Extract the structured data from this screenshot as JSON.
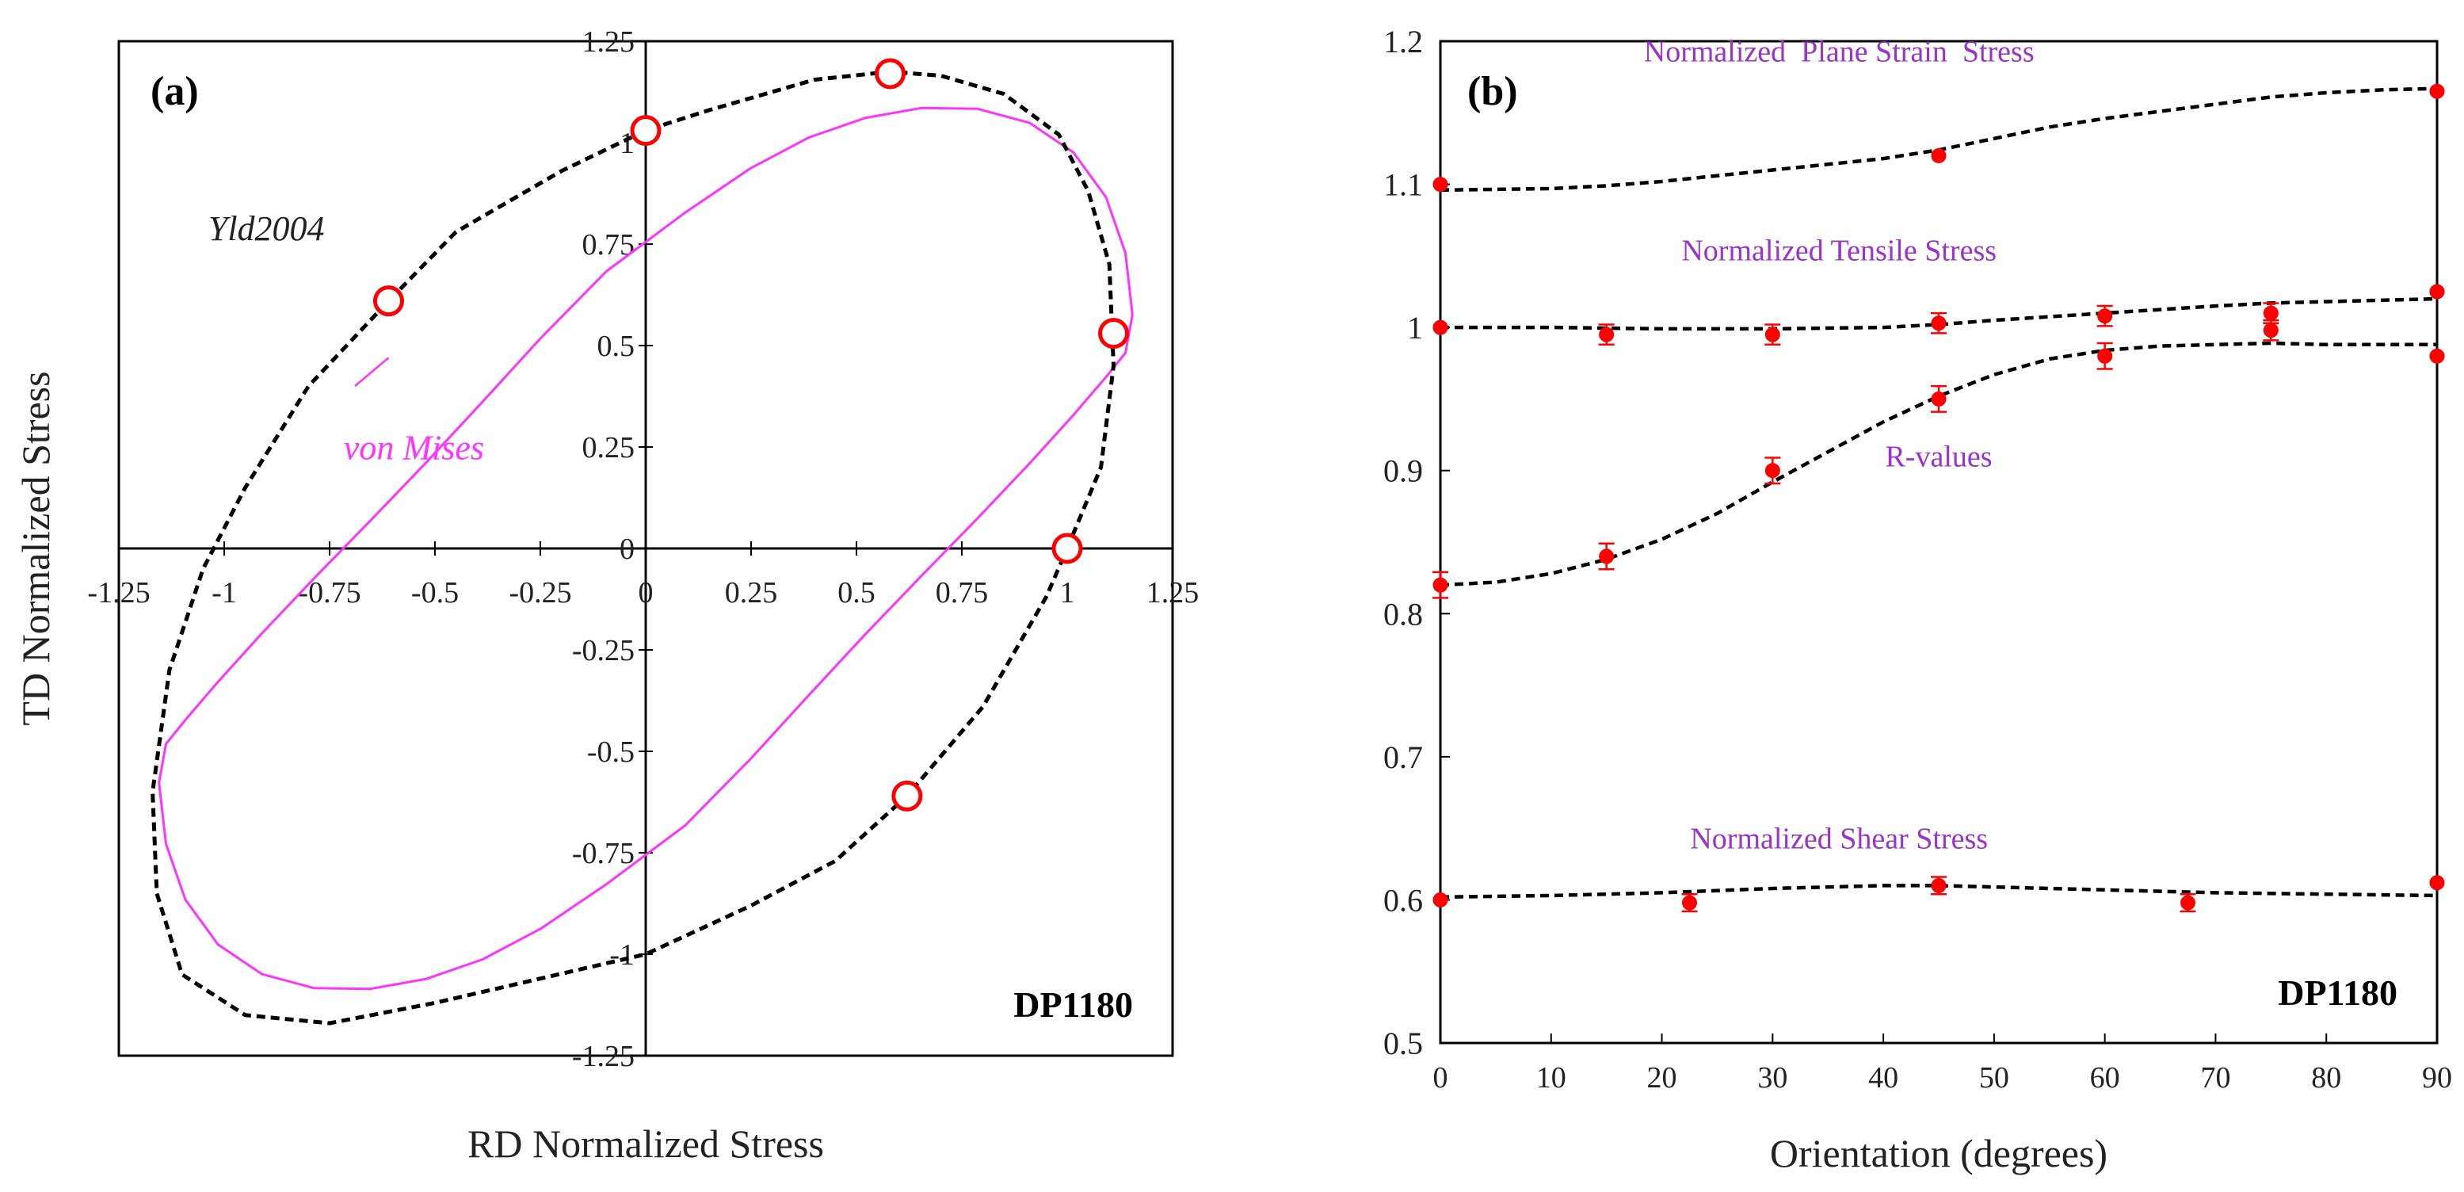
{
  "chart_data": [
    {
      "type": "scatter",
      "panel_label": "(a)",
      "title": "",
      "xlabel": "RD Normalized Stress",
      "ylabel": "TD Normalized Stress",
      "xlim": [
        -1.25,
        1.25
      ],
      "ylim": [
        -1.25,
        1.25
      ],
      "x_ticks": [
        "-1.25",
        "-1",
        "-0.75",
        "-0.5",
        "-0.25",
        "0",
        "0.25",
        "0.5",
        "0.75",
        "1",
        "1.25"
      ],
      "y_ticks": [
        "-1.25",
        "-1",
        "-0.75",
        "-0.5",
        "-0.25",
        "0",
        "0.25",
        "0.5",
        "0.75",
        "1",
        "1.25"
      ],
      "grid": false,
      "annotation": "DP1180",
      "series": [
        {
          "name": "Yld2004",
          "style": "dashed",
          "color": "#000000",
          "x": [
            1.0,
            1.08,
            1.11,
            1.1,
            1.05,
            0.98,
            0.85,
            0.7,
            0.58,
            0.4,
            0.15,
            0.0,
            -0.2,
            -0.45,
            -0.61,
            -0.8,
            -0.95,
            -1.05,
            -1.13,
            -1.17,
            -1.16,
            -1.1,
            -0.95,
            -0.75,
            -0.5,
            -0.25,
            0.0,
            0.25,
            0.45,
            0.62,
            0.8,
            0.95,
            1.0
          ],
          "y": [
            0.0,
            0.2,
            0.45,
            0.7,
            0.88,
            1.02,
            1.12,
            1.165,
            1.175,
            1.155,
            1.08,
            1.03,
            0.93,
            0.78,
            0.61,
            0.4,
            0.15,
            -0.05,
            -0.3,
            -0.6,
            -0.85,
            -1.05,
            -1.15,
            -1.17,
            -1.12,
            -1.06,
            -1.0,
            -0.88,
            -0.77,
            -0.61,
            -0.39,
            -0.12,
            0.0
          ]
        },
        {
          "name": "von Mises",
          "style": "solid",
          "color": "#ff33ff",
          "x": [
            1.155,
            1.1547,
            1.1382,
            1.0921,
            1.0149,
            0.9103,
            0.7864,
            0.6533,
            0.5202,
            0.3871,
            0.2488,
            0.0937,
            -0.0937,
            -0.2488,
            -0.3871,
            -0.5202,
            -0.6533,
            -0.7864,
            -0.9103,
            -1.0149,
            -1.0921,
            -1.1382,
            -1.1547,
            -1.1382,
            -1.0921,
            -1.0149,
            -0.9103,
            -0.7864,
            -0.6533,
            -0.5202,
            -0.3871,
            -0.2488,
            -0.0937,
            0.0937,
            0.2488,
            0.3871,
            0.5202,
            0.6533,
            0.7864,
            0.9103,
            1.0149,
            1.0921,
            1.1382,
            1.155
          ],
          "y": [
            0.577,
            0.5774,
            0.7279,
            0.8655,
            0.9757,
            1.0491,
            1.0836,
            1.0853,
            1.0607,
            1.0126,
            0.9369,
            0.8277,
            0.6826,
            0.5185,
            0.3616,
            0.2125,
            0.0683,
            -0.0735,
            -0.209,
            -0.3289,
            -0.4224,
            -0.4819,
            -0.5774,
            -0.7279,
            -0.8655,
            -0.9757,
            -1.0491,
            -1.0836,
            -1.0853,
            -1.0607,
            -1.0126,
            -0.9369,
            -0.8277,
            -0.6826,
            -0.5185,
            -0.3616,
            -0.2125,
            -0.0683,
            0.0735,
            0.209,
            0.3289,
            0.4224,
            0.4819,
            0.577
          ]
        },
        {
          "name": "Experimental",
          "style": "open-circle",
          "color": "#ff0000",
          "x": [
            0.58,
            0.0,
            -0.61,
            1.11,
            1.0,
            0.62
          ],
          "y": [
            1.17,
            1.03,
            0.61,
            0.53,
            0.0,
            -0.61
          ]
        }
      ],
      "labels": {
        "yld": "Yld2004",
        "vm": "von Mises"
      }
    },
    {
      "type": "scatter",
      "panel_label": "(b)",
      "title": "",
      "xlabel": "Orientation (degrees)",
      "ylabel": "",
      "xlim": [
        0,
        90
      ],
      "ylim": [
        0.5,
        1.2
      ],
      "x_ticks": [
        "0",
        "10",
        "20",
        "30",
        "40",
        "50",
        "60",
        "70",
        "80",
        "90"
      ],
      "y_ticks": [
        "0.5",
        "0.6",
        "0.7",
        "0.8",
        "0.9",
        "1",
        "1.1",
        "1.2"
      ],
      "grid": false,
      "annotation": "DP1180",
      "series": [
        {
          "name": "Normalized  Plane Strain  Stress",
          "fit_x": [
            0,
            10,
            15,
            20,
            25,
            30,
            35,
            40,
            45,
            50,
            55,
            60,
            65,
            70,
            75,
            80,
            85,
            90
          ],
          "fit_y": [
            1.096,
            1.097,
            1.099,
            1.102,
            1.106,
            1.11,
            1.114,
            1.118,
            1.124,
            1.132,
            1.14,
            1.146,
            1.151,
            1.156,
            1.161,
            1.164,
            1.166,
            1.167
          ],
          "points_x": [
            0,
            45,
            90
          ],
          "points_y": [
            1.1,
            1.12,
            1.165
          ],
          "err": [
            0,
            0,
            0
          ],
          "label_pos": [
            36,
            1.186
          ]
        },
        {
          "name": "Normalized Tensile Stress",
          "fit_x": [
            0,
            10,
            20,
            30,
            40,
            45,
            50,
            60,
            70,
            75,
            80,
            90
          ],
          "fit_y": [
            1.0,
            1.0,
            0.999,
            0.999,
            1.0,
            1.002,
            1.005,
            1.01,
            1.015,
            1.017,
            1.018,
            1.02
          ],
          "points_x": [
            0,
            15,
            30,
            45,
            60,
            75,
            75,
            90
          ],
          "points_y": [
            1.0,
            0.995,
            0.995,
            1.003,
            1.008,
            1.01,
            0.998,
            1.025
          ],
          "err": [
            0,
            0.007,
            0.007,
            0.007,
            0.007,
            0.007,
            0.007,
            0
          ],
          "label_pos": [
            36,
            1.047
          ]
        },
        {
          "name": "R-values",
          "fit_x": [
            0,
            5,
            10,
            15,
            20,
            25,
            30,
            35,
            40,
            45,
            50,
            55,
            60,
            65,
            70,
            75,
            80,
            90
          ],
          "fit_y": [
            0.82,
            0.822,
            0.828,
            0.838,
            0.852,
            0.87,
            0.892,
            0.913,
            0.934,
            0.952,
            0.967,
            0.978,
            0.984,
            0.987,
            0.988,
            0.989,
            0.988,
            0.988
          ],
          "points_x": [
            0,
            15,
            30,
            45,
            60,
            90
          ],
          "points_y": [
            0.82,
            0.84,
            0.9,
            0.95,
            0.98,
            0.98
          ],
          "err": [
            0.009,
            0.009,
            0.009,
            0.009,
            0.009,
            0
          ],
          "label_pos": [
            45,
            0.903
          ]
        },
        {
          "name": "Normalized Shear Stress",
          "fit_x": [
            0,
            10,
            20,
            30,
            40,
            45,
            50,
            60,
            70,
            80,
            90
          ],
          "fit_y": [
            0.602,
            0.603,
            0.605,
            0.608,
            0.61,
            0.61,
            0.609,
            0.607,
            0.605,
            0.604,
            0.603
          ],
          "points_x": [
            0,
            22.5,
            45,
            67.5,
            90
          ],
          "points_y": [
            0.6,
            0.598,
            0.61,
            0.598,
            0.612
          ],
          "err": [
            0,
            0.006,
            0.006,
            0.006,
            0
          ],
          "label_pos": [
            36,
            0.636
          ]
        }
      ]
    }
  ]
}
